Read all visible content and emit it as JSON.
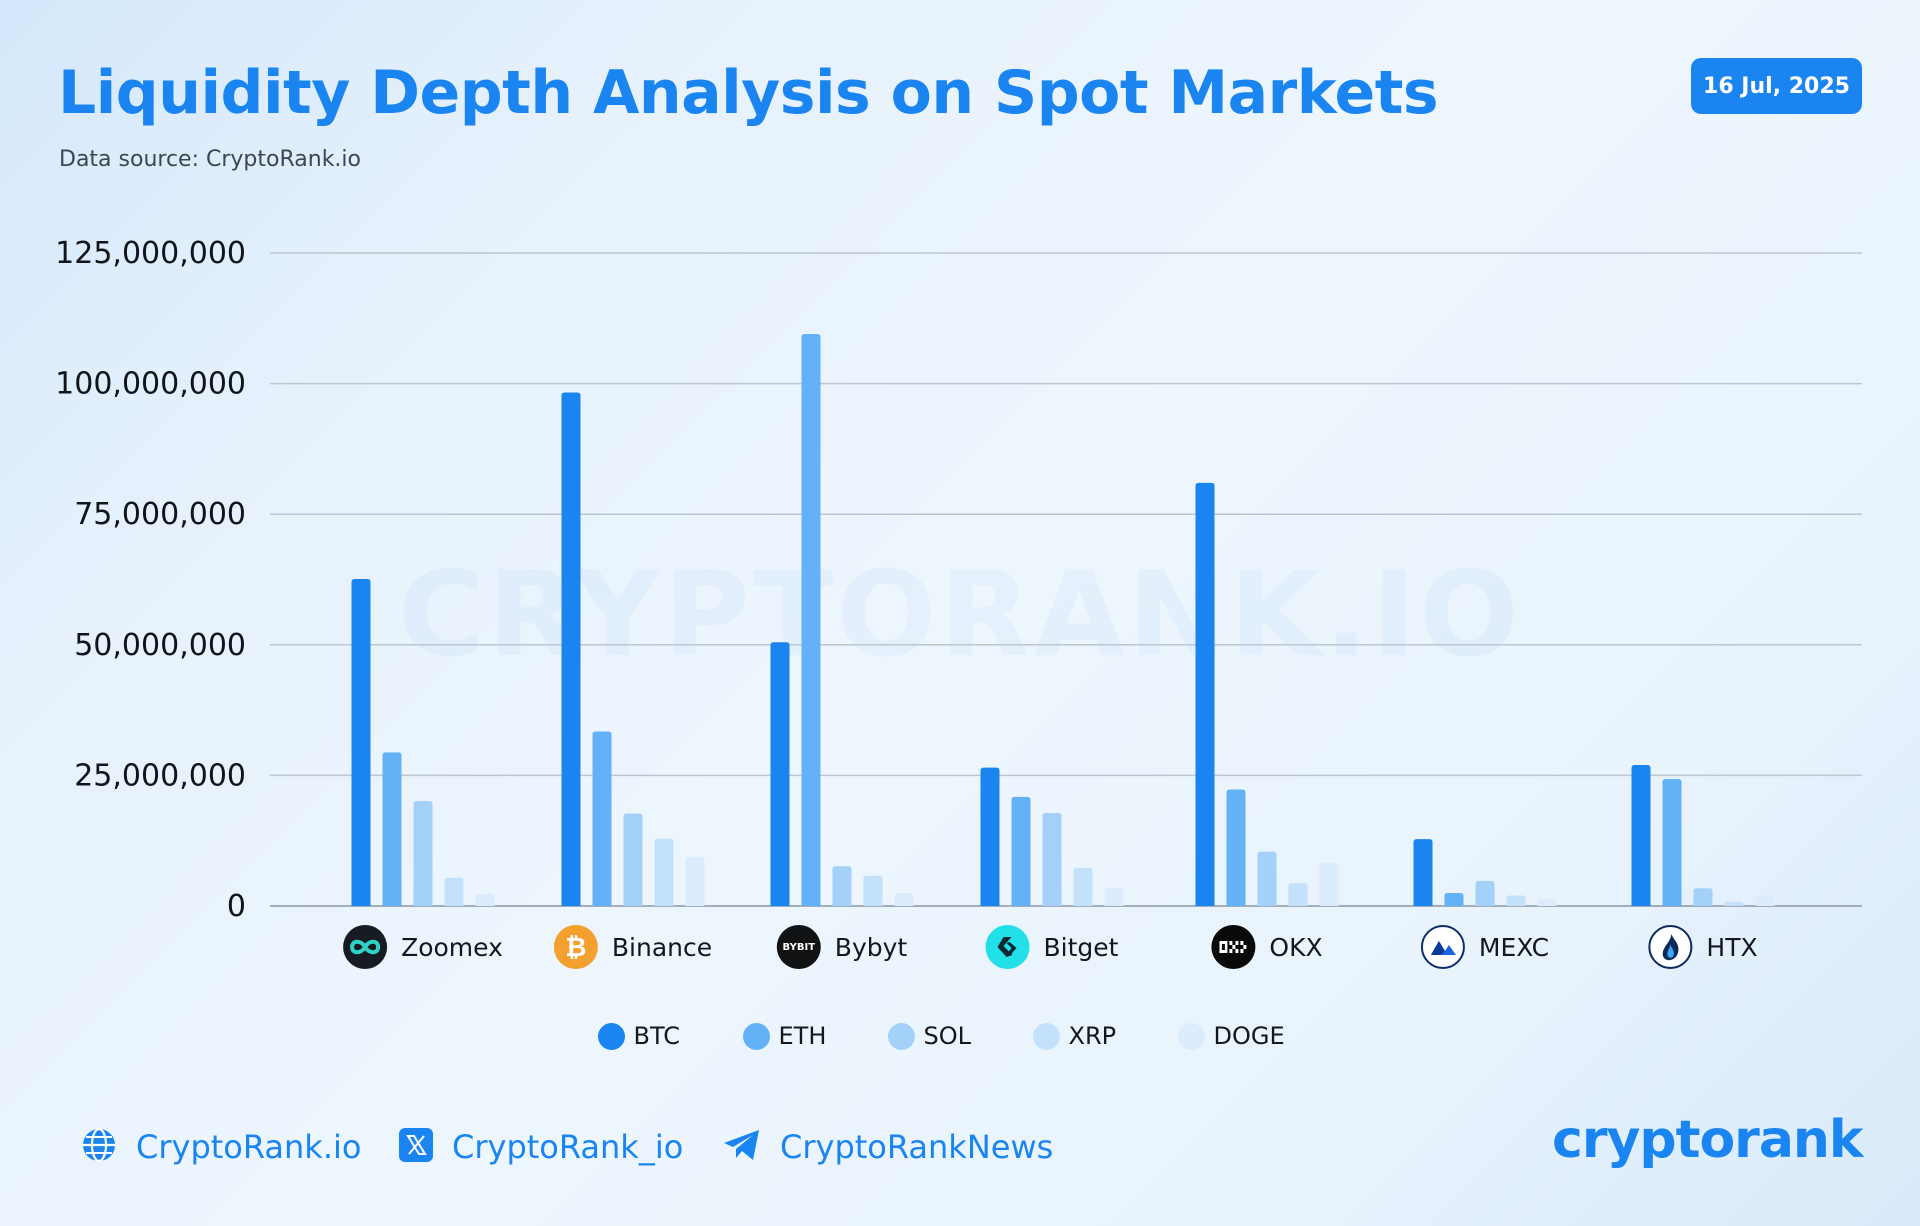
{
  "header": {
    "title": "Liquidity Depth Analysis on Spot Markets",
    "source": "Data source: CryptoRank.io",
    "date": "16 Jul, 2025"
  },
  "watermark": "CRYPTORANK.IO",
  "colors": {
    "BTC": "#1a85f0",
    "ETH": "#63b2f7",
    "SOL": "#a3d1fa",
    "XRP": "#c4e1fb",
    "DOGE": "#dcecfc",
    "accent": "#1a85f0"
  },
  "chart_data": {
    "type": "bar",
    "title": "Liquidity Depth Analysis on Spot Markets",
    "xlabel": "",
    "ylabel": "",
    "ylim": [
      0,
      125000000
    ],
    "yticks": [
      0,
      25000000,
      50000000,
      75000000,
      100000000,
      125000000
    ],
    "ytick_labels": [
      "0",
      "25,000,000",
      "50,000,000",
      "75,000,000",
      "100,000,000",
      "125,000,000"
    ],
    "grid": true,
    "legend_position": "bottom-center",
    "categories": [
      "Zoomex",
      "Binance",
      "Bybyt",
      "Bitget",
      "OKX",
      "MEXC",
      "HTX"
    ],
    "series": [
      {
        "name": "BTC",
        "values": [
          62600000,
          98300000,
          50500000,
          26500000,
          81000000,
          12800000,
          27000000
        ]
      },
      {
        "name": "ETH",
        "values": [
          29400000,
          33400000,
          109500000,
          20900000,
          22300000,
          2500000,
          24300000
        ]
      },
      {
        "name": "SOL",
        "values": [
          20100000,
          17700000,
          7600000,
          17800000,
          10400000,
          4800000,
          3400000
        ]
      },
      {
        "name": "XRP",
        "values": [
          5400000,
          12900000,
          5800000,
          7300000,
          4400000,
          2000000,
          800000
        ]
      },
      {
        "name": "DOGE",
        "values": [
          2300000,
          9400000,
          2500000,
          3500000,
          8200000,
          1300000,
          2000000
        ]
      }
    ]
  },
  "exchanges": [
    {
      "name": "Zoomex",
      "logo_icon": "zoomex-logo-icon"
    },
    {
      "name": "Binance",
      "logo_icon": "binance-logo-icon"
    },
    {
      "name": "Bybyt",
      "logo_icon": "bybit-logo-icon",
      "logo_text": "BYBIT"
    },
    {
      "name": "Bitget",
      "logo_icon": "bitget-logo-icon"
    },
    {
      "name": "OKX",
      "logo_icon": "okx-logo-icon"
    },
    {
      "name": "MEXC",
      "logo_icon": "mexc-logo-icon"
    },
    {
      "name": "HTX",
      "logo_icon": "htx-logo-icon"
    }
  ],
  "legend": [
    "BTC",
    "ETH",
    "SOL",
    "XRP",
    "DOGE"
  ],
  "footer": {
    "website": "CryptoRank.io",
    "twitter": "CryptoRank_io",
    "telegram": "CryptoRankNews",
    "brand": "cryptorank"
  }
}
